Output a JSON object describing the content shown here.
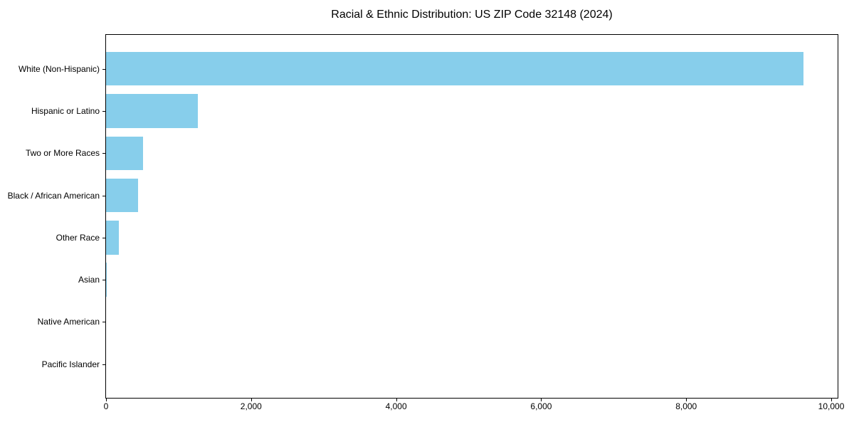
{
  "chart_data": {
    "type": "bar",
    "orientation": "horizontal",
    "title": "Racial & Ethnic Distribution: US ZIP Code 32148 (2024)",
    "categories": [
      "White (Non-Hispanic)",
      "Hispanic or Latino",
      "Two or More Races",
      "Black / African American",
      "Other Race",
      "Asian",
      "Native American",
      "Pacific Islander"
    ],
    "values": [
      9617,
      1266,
      510,
      442,
      177,
      10,
      0,
      0
    ],
    "xlabel": "",
    "ylabel": "",
    "x_ticks": [
      0,
      2000,
      4000,
      6000,
      8000,
      10000
    ],
    "x_tick_labels": [
      "0",
      "2,000",
      "4,000",
      "6,000",
      "8,000",
      "10,000"
    ],
    "xlim": [
      0,
      10088
    ],
    "bar_color": "#87CEEB",
    "text_color": "#000000",
    "spine_color": "#000000",
    "background_color": "#ffffff",
    "grid": false,
    "legend": null
  }
}
